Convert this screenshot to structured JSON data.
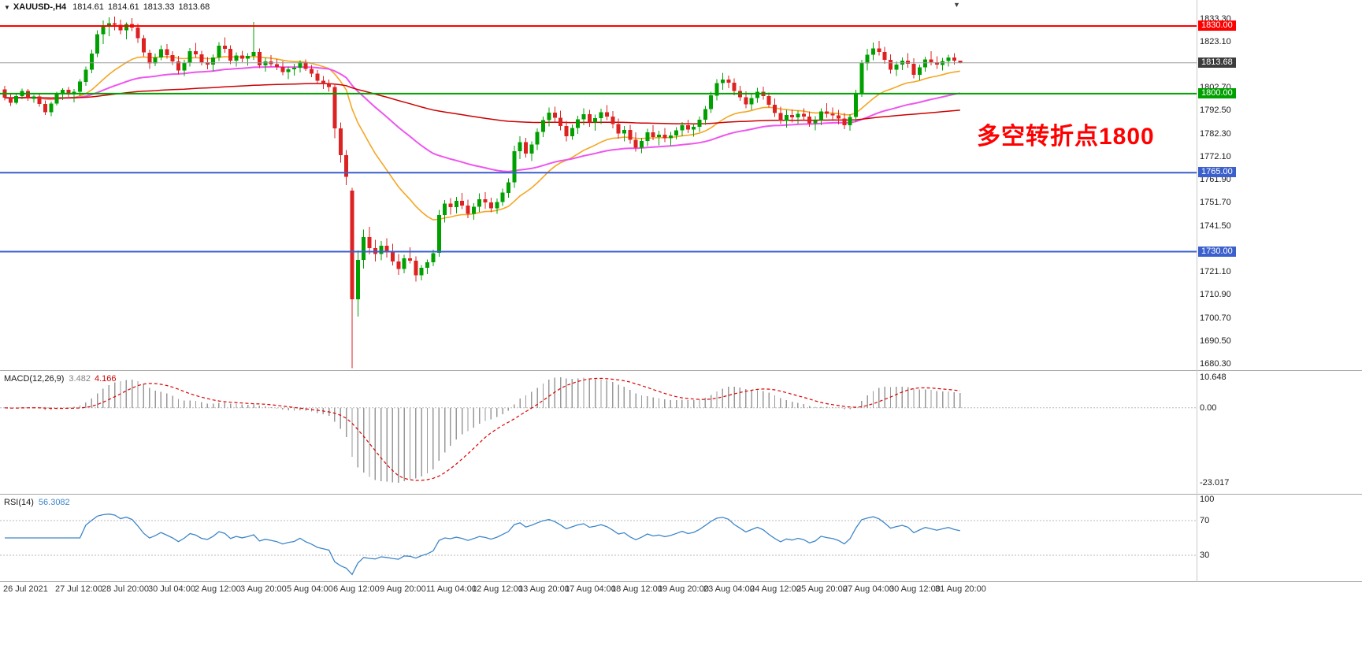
{
  "window": {
    "title": {
      "collapse_icon": "▼",
      "symbol_period": "XAUUSD-,H4",
      "open": "1814.61",
      "high": "1814.61",
      "low": "1813.33",
      "close": "1813.68"
    },
    "shift_marker_icon": "▼"
  },
  "annotation": {
    "text": "多空转折点1800",
    "color": "#FF0000"
  },
  "colors": {
    "background": "#FFFFFF",
    "bull": "#00A000",
    "bear": "#DD2222",
    "separator": "#A6A6A6",
    "axis_text": "#1A1A1A",
    "time_text": "#333333",
    "current_price_line": "#9A9A9A"
  },
  "price_axis": {
    "ticks": [
      {
        "text": "1833.30",
        "price": 1833.3
      },
      {
        "text": "1823.10",
        "price": 1823.1
      },
      {
        "text": "1802.70",
        "price": 1802.7
      },
      {
        "text": "1792.50",
        "price": 1792.5
      },
      {
        "text": "1782.30",
        "price": 1782.3
      },
      {
        "text": "1772.10",
        "price": 1772.1
      },
      {
        "text": "1761.90",
        "price": 1761.9
      },
      {
        "text": "1751.70",
        "price": 1751.7
      },
      {
        "text": "1741.50",
        "price": 1741.5
      },
      {
        "text": "1721.10",
        "price": 1721.1
      },
      {
        "text": "1710.90",
        "price": 1710.9
      },
      {
        "text": "1700.70",
        "price": 1700.7
      },
      {
        "text": "1690.50",
        "price": 1690.5
      },
      {
        "text": "1680.30",
        "price": 1680.3
      }
    ],
    "badges": [
      {
        "text": "1830.00",
        "price": 1830.0,
        "bg": "#FF0000"
      },
      {
        "text": "1813.68",
        "price": 1813.68,
        "bg": "#3C3C3C"
      },
      {
        "text": "1800.00",
        "price": 1800.0,
        "bg": "#00A000"
      },
      {
        "text": "1765.00",
        "price": 1765.0,
        "bg": "#3B5FCD"
      },
      {
        "text": "1730.00",
        "price": 1730.0,
        "bg": "#3B5FCD"
      }
    ]
  },
  "chart_data": {
    "type": "candlestick",
    "symbol": "XAUUSD-",
    "timeframe": "H4",
    "ylim": [
      1677.5,
      1841.5
    ],
    "current_price": 1813.68,
    "levels": [
      {
        "price": 1830.0,
        "color": "#FF0000",
        "width": 2
      },
      {
        "price": 1800.0,
        "color": "#00A000",
        "width": 2
      },
      {
        "price": 1765.0,
        "color": "#3B5FCD",
        "width": 2
      },
      {
        "price": 1730.0,
        "color": "#3B5FCD",
        "width": 2
      }
    ],
    "moving_averages": [
      {
        "type": "EMA",
        "period": 21,
        "color": "#F5A623",
        "width": 1.6
      },
      {
        "type": "EMA",
        "period": 56,
        "color": "#EE55EE",
        "width": 2
      },
      {
        "type": "EMA",
        "period": 200,
        "color": "#CC0000",
        "width": 1.5
      }
    ],
    "x_labels": [
      {
        "text": "26 Jul 2021",
        "bar": 0
      },
      {
        "text": "27 Jul 12:00",
        "bar": 9
      },
      {
        "text": "28 Jul 20:00",
        "bar": 17
      },
      {
        "text": "30 Jul 04:00",
        "bar": 25
      },
      {
        "text": "2 Aug 12:00",
        "bar": 33
      },
      {
        "text": "3 Aug 20:00",
        "bar": 41
      },
      {
        "text": "5 Aug 04:00",
        "bar": 49
      },
      {
        "text": "6 Aug 12:00",
        "bar": 57
      },
      {
        "text": "9 Aug 20:00",
        "bar": 65
      },
      {
        "text": "11 Aug 04:00",
        "bar": 73
      },
      {
        "text": "12 Aug 12:00",
        "bar": 81
      },
      {
        "text": "13 Aug 20:00",
        "bar": 89
      },
      {
        "text": "17 Aug 04:00",
        "bar": 97
      },
      {
        "text": "18 Aug 12:00",
        "bar": 105
      },
      {
        "text": "19 Aug 20:00",
        "bar": 113
      },
      {
        "text": "23 Aug 04:00",
        "bar": 121
      },
      {
        "text": "24 Aug 12:00",
        "bar": 129
      },
      {
        "text": "25 Aug 20:00",
        "bar": 137
      },
      {
        "text": "27 Aug 04:00",
        "bar": 145
      },
      {
        "text": "30 Aug 12:00",
        "bar": 153
      },
      {
        "text": "31 Aug 20:00",
        "bar": 161
      }
    ],
    "candles": [
      [
        1801.9,
        1803.5,
        1797.0,
        1798.2
      ],
      [
        1798.2,
        1800.1,
        1794.5,
        1796.0
      ],
      [
        1796.0,
        1799.8,
        1795.2,
        1798.9
      ],
      [
        1798.9,
        1802.3,
        1797.5,
        1801.2
      ],
      [
        1801.2,
        1802.0,
        1796.8,
        1797.8
      ],
      [
        1797.8,
        1799.5,
        1795.9,
        1798.8
      ],
      [
        1798.8,
        1800.2,
        1794.3,
        1795.5
      ],
      [
        1795.5,
        1797.0,
        1790.5,
        1791.8
      ],
      [
        1791.8,
        1796.4,
        1790.1,
        1795.6
      ],
      [
        1795.6,
        1800.9,
        1794.8,
        1799.9
      ],
      [
        1799.9,
        1802.5,
        1797.2,
        1801.8
      ],
      [
        1801.8,
        1803.0,
        1798.5,
        1799.6
      ],
      [
        1799.6,
        1802.0,
        1796.2,
        1800.8
      ],
      [
        1800.8,
        1806.5,
        1799.0,
        1805.3
      ],
      [
        1805.3,
        1812.0,
        1803.5,
        1810.6
      ],
      [
        1810.6,
        1819.5,
        1809.0,
        1817.8
      ],
      [
        1817.8,
        1828.0,
        1816.2,
        1826.4
      ],
      [
        1826.4,
        1832.5,
        1822.0,
        1829.7
      ],
      [
        1829.7,
        1833.8,
        1825.5,
        1831.2
      ],
      [
        1831.2,
        1834.2,
        1828.0,
        1830.5
      ],
      [
        1830.5,
        1832.8,
        1826.3,
        1828.1
      ],
      [
        1828.1,
        1831.5,
        1824.0,
        1830.9
      ],
      [
        1830.9,
        1833.5,
        1827.8,
        1829.3
      ],
      [
        1829.3,
        1831.0,
        1822.5,
        1824.6
      ],
      [
        1824.6,
        1826.0,
        1816.5,
        1818.2
      ],
      [
        1818.2,
        1819.5,
        1811.0,
        1813.4
      ],
      [
        1813.4,
        1817.8,
        1812.2,
        1816.0
      ],
      [
        1816.0,
        1821.5,
        1814.8,
        1819.7
      ],
      [
        1819.7,
        1822.0,
        1815.5,
        1817.1
      ],
      [
        1817.1,
        1818.9,
        1812.8,
        1814.3
      ],
      [
        1814.3,
        1816.8,
        1808.5,
        1810.2
      ],
      [
        1810.2,
        1815.0,
        1807.8,
        1813.6
      ],
      [
        1813.6,
        1820.3,
        1812.0,
        1818.9
      ],
      [
        1818.9,
        1822.5,
        1816.1,
        1817.4
      ],
      [
        1817.4,
        1819.0,
        1812.5,
        1814.0
      ],
      [
        1814.0,
        1816.2,
        1810.8,
        1812.9
      ],
      [
        1812.9,
        1817.5,
        1810.0,
        1816.1
      ],
      [
        1816.1,
        1822.8,
        1814.5,
        1821.3
      ],
      [
        1821.3,
        1825.0,
        1818.2,
        1819.8
      ],
      [
        1819.8,
        1821.5,
        1813.0,
        1814.7
      ],
      [
        1814.7,
        1818.3,
        1812.1,
        1816.9
      ],
      [
        1816.9,
        1819.0,
        1814.0,
        1815.5
      ],
      [
        1815.5,
        1818.0,
        1812.3,
        1816.8
      ],
      [
        1816.8,
        1831.8,
        1815.0,
        1818.5
      ],
      [
        1818.5,
        1820.1,
        1811.4,
        1812.6
      ],
      [
        1812.6,
        1815.9,
        1809.8,
        1814.2
      ],
      [
        1814.2,
        1817.0,
        1812.0,
        1813.1
      ],
      [
        1813.1,
        1815.4,
        1810.5,
        1811.9
      ],
      [
        1811.9,
        1814.5,
        1808.2,
        1809.6
      ],
      [
        1809.6,
        1812.0,
        1806.5,
        1810.8
      ],
      [
        1810.8,
        1813.3,
        1808.0,
        1811.5
      ],
      [
        1811.5,
        1814.8,
        1809.4,
        1813.9
      ],
      [
        1813.9,
        1815.2,
        1810.1,
        1811.0
      ],
      [
        1811.0,
        1812.8,
        1807.3,
        1808.9
      ],
      [
        1808.9,
        1810.5,
        1804.2,
        1805.8
      ],
      [
        1805.8,
        1807.9,
        1802.1,
        1804.4
      ],
      [
        1804.4,
        1806.2,
        1800.9,
        1803.0
      ],
      [
        1803.0,
        1804.5,
        1780.2,
        1784.6
      ],
      [
        1784.6,
        1787.3,
        1769.5,
        1772.8
      ],
      [
        1772.8,
        1775.0,
        1759.5,
        1763.1
      ],
      [
        1757.0,
        1758.2,
        1678.4,
        1708.9
      ],
      [
        1708.9,
        1730.5,
        1701.2,
        1726.3
      ],
      [
        1726.3,
        1739.8,
        1722.5,
        1736.4
      ],
      [
        1736.4,
        1741.0,
        1728.8,
        1731.5
      ],
      [
        1731.5,
        1735.2,
        1725.6,
        1729.0
      ],
      [
        1729.0,
        1734.8,
        1726.1,
        1732.6
      ],
      [
        1732.6,
        1736.0,
        1727.4,
        1729.8
      ],
      [
        1729.8,
        1733.5,
        1723.9,
        1725.6
      ],
      [
        1725.6,
        1729.0,
        1719.8,
        1722.3
      ],
      [
        1722.3,
        1728.7,
        1720.5,
        1727.1
      ],
      [
        1727.1,
        1731.9,
        1724.8,
        1726.0
      ],
      [
        1726.0,
        1728.0,
        1716.8,
        1719.5
      ],
      [
        1719.5,
        1724.0,
        1717.2,
        1722.8
      ],
      [
        1722.8,
        1726.5,
        1720.0,
        1725.3
      ],
      [
        1725.3,
        1730.9,
        1723.5,
        1729.4
      ],
      [
        1729.4,
        1748.5,
        1727.8,
        1746.2
      ],
      [
        1746.2,
        1752.9,
        1743.0,
        1751.3
      ],
      [
        1751.3,
        1753.8,
        1746.5,
        1749.7
      ],
      [
        1749.7,
        1754.2,
        1747.0,
        1752.6
      ],
      [
        1752.6,
        1756.0,
        1748.8,
        1750.4
      ],
      [
        1750.4,
        1753.1,
        1744.9,
        1746.8
      ],
      [
        1746.8,
        1751.5,
        1744.2,
        1749.9
      ],
      [
        1749.9,
        1755.8,
        1747.6,
        1753.2
      ],
      [
        1753.2,
        1756.4,
        1749.0,
        1751.8
      ],
      [
        1751.8,
        1754.0,
        1747.5,
        1749.2
      ],
      [
        1749.2,
        1753.6,
        1746.8,
        1752.0
      ],
      [
        1752.0,
        1757.9,
        1750.3,
        1756.1
      ],
      [
        1756.1,
        1762.5,
        1754.0,
        1760.8
      ],
      [
        1760.8,
        1776.9,
        1758.2,
        1774.5
      ],
      [
        1774.5,
        1781.2,
        1771.0,
        1778.6
      ],
      [
        1778.6,
        1780.5,
        1771.8,
        1773.5
      ],
      [
        1773.5,
        1778.9,
        1770.2,
        1777.4
      ],
      [
        1777.4,
        1784.6,
        1775.0,
        1783.1
      ],
      [
        1783.1,
        1789.9,
        1780.8,
        1788.2
      ],
      [
        1788.2,
        1793.8,
        1785.5,
        1791.6
      ],
      [
        1791.6,
        1794.2,
        1787.0,
        1789.3
      ],
      [
        1789.3,
        1792.5,
        1783.8,
        1785.6
      ],
      [
        1785.6,
        1788.0,
        1778.9,
        1781.2
      ],
      [
        1781.2,
        1786.4,
        1779.5,
        1784.8
      ],
      [
        1784.8,
        1790.2,
        1782.1,
        1788.7
      ],
      [
        1788.7,
        1793.5,
        1786.0,
        1790.9
      ],
      [
        1790.9,
        1792.8,
        1785.4,
        1787.2
      ],
      [
        1787.2,
        1790.8,
        1783.5,
        1789.1
      ],
      [
        1789.1,
        1793.4,
        1786.6,
        1791.8
      ],
      [
        1791.8,
        1795.0,
        1788.2,
        1789.9
      ],
      [
        1789.9,
        1792.3,
        1784.7,
        1786.5
      ],
      [
        1786.5,
        1788.9,
        1780.1,
        1782.4
      ],
      [
        1782.4,
        1785.6,
        1778.8,
        1784.0
      ],
      [
        1784.0,
        1786.2,
        1777.9,
        1779.5
      ],
      [
        1779.5,
        1782.8,
        1774.3,
        1776.1
      ],
      [
        1776.1,
        1780.4,
        1773.6,
        1779.0
      ],
      [
        1779.0,
        1784.5,
        1776.8,
        1782.9
      ],
      [
        1782.9,
        1786.1,
        1779.4,
        1780.8
      ],
      [
        1780.8,
        1783.5,
        1777.2,
        1781.9
      ],
      [
        1781.9,
        1784.8,
        1778.5,
        1780.3
      ],
      [
        1780.3,
        1783.0,
        1776.9,
        1781.5
      ],
      [
        1781.5,
        1785.2,
        1779.8,
        1783.7
      ],
      [
        1783.7,
        1787.4,
        1781.2,
        1786.0
      ],
      [
        1786.0,
        1788.5,
        1782.6,
        1784.1
      ],
      [
        1784.1,
        1786.8,
        1780.9,
        1785.3
      ],
      [
        1785.3,
        1789.9,
        1783.0,
        1788.4
      ],
      [
        1788.4,
        1794.6,
        1786.2,
        1793.1
      ],
      [
        1793.1,
        1800.8,
        1791.5,
        1799.2
      ],
      [
        1799.2,
        1806.5,
        1797.0,
        1804.7
      ],
      [
        1804.7,
        1809.3,
        1801.8,
        1806.2
      ],
      [
        1806.2,
        1808.0,
        1802.5,
        1804.9
      ],
      [
        1804.9,
        1806.8,
        1799.3,
        1801.2
      ],
      [
        1801.2,
        1803.5,
        1796.8,
        1798.4
      ],
      [
        1798.4,
        1801.0,
        1793.5,
        1795.3
      ],
      [
        1795.3,
        1799.8,
        1792.9,
        1798.1
      ],
      [
        1798.1,
        1802.6,
        1796.0,
        1800.9
      ],
      [
        1800.9,
        1803.2,
        1797.4,
        1799.0
      ],
      [
        1799.0,
        1800.5,
        1793.8,
        1795.1
      ],
      [
        1795.1,
        1797.9,
        1789.6,
        1791.4
      ],
      [
        1791.4,
        1794.2,
        1786.5,
        1788.0
      ],
      [
        1788.0,
        1792.8,
        1784.9,
        1790.6
      ],
      [
        1790.6,
        1793.0,
        1787.2,
        1789.5
      ],
      [
        1789.5,
        1792.4,
        1786.8,
        1791.0
      ],
      [
        1791.0,
        1793.5,
        1787.9,
        1789.8
      ],
      [
        1789.8,
        1792.2,
        1785.4,
        1786.9
      ],
      [
        1786.9,
        1790.0,
        1783.8,
        1788.3
      ],
      [
        1788.3,
        1793.6,
        1786.1,
        1792.2
      ],
      [
        1792.2,
        1795.8,
        1789.4,
        1791.1
      ],
      [
        1791.1,
        1793.9,
        1788.0,
        1790.4
      ],
      [
        1790.4,
        1792.8,
        1786.3,
        1788.9
      ],
      [
        1788.9,
        1791.5,
        1784.2,
        1786.0
      ],
      [
        1786.0,
        1790.9,
        1783.5,
        1789.7
      ],
      [
        1789.7,
        1801.8,
        1787.4,
        1800.2
      ],
      [
        1800.2,
        1814.9,
        1798.6,
        1813.5
      ],
      [
        1813.5,
        1819.8,
        1810.2,
        1817.3
      ],
      [
        1817.3,
        1822.6,
        1814.8,
        1820.1
      ],
      [
        1820.1,
        1823.4,
        1816.9,
        1818.5
      ],
      [
        1818.5,
        1820.8,
        1813.2,
        1815.0
      ],
      [
        1815.0,
        1817.5,
        1808.9,
        1810.6
      ],
      [
        1810.6,
        1814.3,
        1807.8,
        1812.9
      ],
      [
        1812.9,
        1816.0,
        1810.4,
        1814.7
      ],
      [
        1814.7,
        1817.9,
        1811.5,
        1813.2
      ],
      [
        1813.2,
        1815.6,
        1806.8,
        1808.4
      ],
      [
        1808.4,
        1812.9,
        1805.9,
        1811.7
      ],
      [
        1811.7,
        1816.4,
        1809.8,
        1815.1
      ],
      [
        1815.1,
        1818.8,
        1812.6,
        1814.0
      ],
      [
        1814.0,
        1816.5,
        1810.9,
        1812.8
      ],
      [
        1812.8,
        1815.9,
        1810.3,
        1814.5
      ],
      [
        1814.5,
        1817.2,
        1812.0,
        1816.1
      ],
      [
        1816.1,
        1818.0,
        1812.9,
        1814.61
      ],
      [
        1814.61,
        1814.61,
        1813.33,
        1813.68
      ]
    ],
    "indicators": {
      "macd": {
        "label": "MACD(12,26,9)",
        "value_main": "3.482",
        "value_signal": "4.166",
        "fast": 12,
        "slow": 26,
        "signal": 9,
        "axis_labels": [
          "10.648",
          "0.00",
          "-23.017"
        ],
        "histogram_color": "#999999",
        "signal_color": "#DD0000"
      },
      "rsi": {
        "label": "RSI(14)",
        "value_text": "56.3082",
        "period": 14,
        "levels": [
          70,
          30
        ],
        "axis_labels": [
          {
            "text": "100",
            "value": 100
          },
          {
            "text": "70",
            "value": 70
          },
          {
            "text": "30",
            "value": 30
          }
        ],
        "line_color": "#3E86C8"
      }
    }
  }
}
